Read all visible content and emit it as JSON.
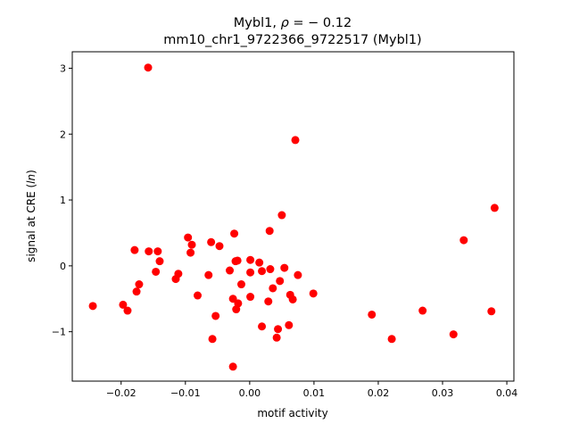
{
  "chart_data": {
    "type": "scatter",
    "title_line1_prefix": "Mybl1, ",
    "title_rho_symbol": "ρ",
    "title_rho_value": " = − 0.12",
    "title_line2": "mm10_chr1_9722366_9722517 (Mybl1)",
    "xlabel": "motif activity",
    "ylabel_prefix": "signal at CRE (",
    "ylabel_italic": "ln",
    "ylabel_suffix": ")",
    "xlim": [
      -0.0276,
      0.0411
    ],
    "ylim": [
      -1.75,
      3.25
    ],
    "xticks": [
      -0.02,
      -0.01,
      0.0,
      0.01,
      0.02,
      0.03,
      0.04
    ],
    "xtick_labels": [
      "−0.02",
      "−0.01",
      "0.00",
      "0.01",
      "0.02",
      "0.03",
      "0.04"
    ],
    "yticks": [
      -1,
      0,
      1,
      2,
      3
    ],
    "ytick_labels": [
      "−1",
      "0",
      "1",
      "2",
      "3"
    ],
    "marker_color": "#ff0000",
    "grid": false,
    "points": [
      [
        -0.0244,
        -0.61
      ],
      [
        -0.0158,
        3.01
      ],
      [
        0.0071,
        1.91
      ],
      [
        0.0381,
        0.88
      ],
      [
        0.0333,
        0.39
      ],
      [
        0.0376,
        -0.69
      ],
      [
        0.0317,
        -1.04
      ],
      [
        0.0269,
        -0.68
      ],
      [
        0.0221,
        -1.11
      ],
      [
        0.019,
        -0.74
      ],
      [
        0.0099,
        -0.42
      ],
      [
        -0.0197,
        -0.59
      ],
      [
        -0.019,
        -0.68
      ],
      [
        -0.0179,
        0.24
      ],
      [
        -0.0176,
        -0.39
      ],
      [
        -0.0172,
        -0.28
      ],
      [
        -0.0157,
        0.22
      ],
      [
        -0.0143,
        0.22
      ],
      [
        -0.014,
        0.07
      ],
      [
        -0.0146,
        -0.09
      ],
      [
        -0.0115,
        -0.2
      ],
      [
        -0.0111,
        -0.12
      ],
      [
        -0.0096,
        0.43
      ],
      [
        -0.009,
        0.32
      ],
      [
        -0.0092,
        0.2
      ],
      [
        -0.0081,
        -0.45
      ],
      [
        -0.0064,
        -0.14
      ],
      [
        -0.006,
        0.36
      ],
      [
        -0.0047,
        0.3
      ],
      [
        -0.0058,
        -1.11
      ],
      [
        -0.0053,
        -0.76
      ],
      [
        -0.0024,
        0.49
      ],
      [
        -0.0031,
        -0.07
      ],
      [
        -0.0022,
        0.07
      ],
      [
        -0.0019,
        0.08
      ],
      [
        -0.0026,
        -0.5
      ],
      [
        -0.0018,
        -0.57
      ],
      [
        -0.0021,
        -0.66
      ],
      [
        -0.0013,
        -0.28
      ],
      [
        -0.0026,
        -1.53
      ],
      [
        0.0001,
        0.09
      ],
      [
        0.0001,
        -0.1
      ],
      [
        0.0001,
        -0.47
      ],
      [
        0.0015,
        0.05
      ],
      [
        0.0019,
        -0.08
      ],
      [
        0.0032,
        -0.05
      ],
      [
        0.0031,
        0.53
      ],
      [
        0.005,
        0.77
      ],
      [
        0.0054,
        -0.03
      ],
      [
        0.0036,
        -0.34
      ],
      [
        0.0047,
        -0.23
      ],
      [
        0.0029,
        -0.54
      ],
      [
        0.0063,
        -0.44
      ],
      [
        0.0067,
        -0.51
      ],
      [
        0.0075,
        -0.14
      ],
      [
        0.0019,
        -0.92
      ],
      [
        0.0044,
        -0.96
      ],
      [
        0.0042,
        -1.09
      ],
      [
        0.0061,
        -0.9
      ]
    ]
  }
}
